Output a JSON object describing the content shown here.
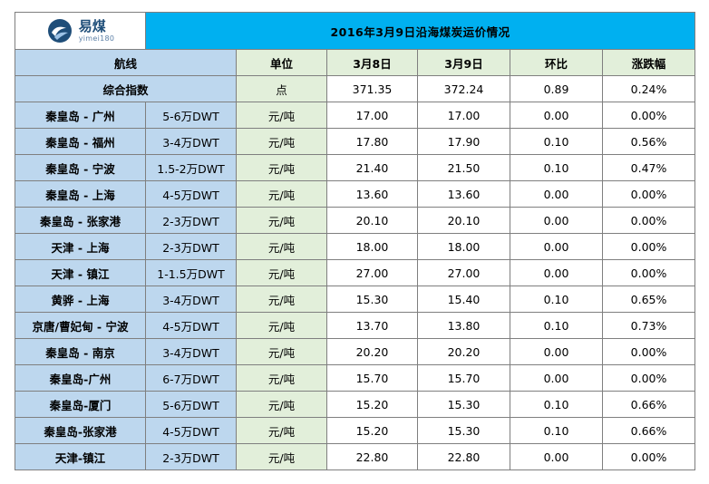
{
  "logo": {
    "name": "易煤",
    "sub": "yimei180"
  },
  "title": "2016年3月9日沿海煤炭运价情况",
  "header": {
    "route": "航线",
    "unit": "单位",
    "date1": "3月8日",
    "date2": "3月9日",
    "change": "环比",
    "pct": "涨跌幅"
  },
  "index_row": {
    "label": "综合指数",
    "unit": "点",
    "date1": "371.35",
    "date2": "372.24",
    "change": "0.89",
    "pct": "0.24%"
  },
  "rows": [
    {
      "route": "秦皇岛 - 广州",
      "ship": "5-6万DWT",
      "unit": "元/吨",
      "date1": "17.00",
      "date2": "17.00",
      "change": "0.00",
      "pct": "0.00%"
    },
    {
      "route": "秦皇岛 - 福州",
      "ship": "3-4万DWT",
      "unit": "元/吨",
      "date1": "17.80",
      "date2": "17.90",
      "change": "0.10",
      "pct": "0.56%"
    },
    {
      "route": "秦皇岛 - 宁波",
      "ship": "1.5-2万DWT",
      "unit": "元/吨",
      "date1": "21.40",
      "date2": "21.50",
      "change": "0.10",
      "pct": "0.47%"
    },
    {
      "route": "秦皇岛 - 上海",
      "ship": "4-5万DWT",
      "unit": "元/吨",
      "date1": "13.60",
      "date2": "13.60",
      "change": "0.00",
      "pct": "0.00%"
    },
    {
      "route": "秦皇岛 - 张家港",
      "ship": "2-3万DWT",
      "unit": "元/吨",
      "date1": "20.10",
      "date2": "20.10",
      "change": "0.00",
      "pct": "0.00%"
    },
    {
      "route": "天津 - 上海",
      "ship": "2-3万DWT",
      "unit": "元/吨",
      "date1": "18.00",
      "date2": "18.00",
      "change": "0.00",
      "pct": "0.00%"
    },
    {
      "route": "天津 - 镇江",
      "ship": "1-1.5万DWT",
      "unit": "元/吨",
      "date1": "27.00",
      "date2": "27.00",
      "change": "0.00",
      "pct": "0.00%"
    },
    {
      "route": "黄骅 - 上海",
      "ship": "3-4万DWT",
      "unit": "元/吨",
      "date1": "15.30",
      "date2": "15.40",
      "change": "0.10",
      "pct": "0.65%"
    },
    {
      "route": "京唐/曹妃甸 - 宁波",
      "ship": "4-5万DWT",
      "unit": "元/吨",
      "date1": "13.70",
      "date2": "13.80",
      "change": "0.10",
      "pct": "0.73%"
    },
    {
      "route": "秦皇岛 - 南京",
      "ship": "3-4万DWT",
      "unit": "元/吨",
      "date1": "20.20",
      "date2": "20.20",
      "change": "0.00",
      "pct": "0.00%"
    },
    {
      "route": "秦皇岛-广州",
      "ship": "6-7万DWT",
      "unit": "元/吨",
      "date1": "15.70",
      "date2": "15.70",
      "change": "0.00",
      "pct": "0.00%"
    },
    {
      "route": "秦皇岛-厦门",
      "ship": "5-6万DWT",
      "unit": "元/吨",
      "date1": "15.20",
      "date2": "15.30",
      "change": "0.10",
      "pct": "0.66%"
    },
    {
      "route": "秦皇岛-张家港",
      "ship": "4-5万DWT",
      "unit": "元/吨",
      "date1": "15.20",
      "date2": "15.30",
      "change": "0.10",
      "pct": "0.66%"
    },
    {
      "route": "天津-镇江",
      "ship": "2-3万DWT",
      "unit": "元/吨",
      "date1": "22.80",
      "date2": "22.80",
      "change": "0.00",
      "pct": "0.00%"
    }
  ],
  "colors": {
    "title_bg": "#00b0f0",
    "header_blue": "#bdd7ee",
    "header_green": "#e2efda",
    "border": "#7f7f7f"
  },
  "icons": {
    "logo": "yimei-logo-icon"
  }
}
